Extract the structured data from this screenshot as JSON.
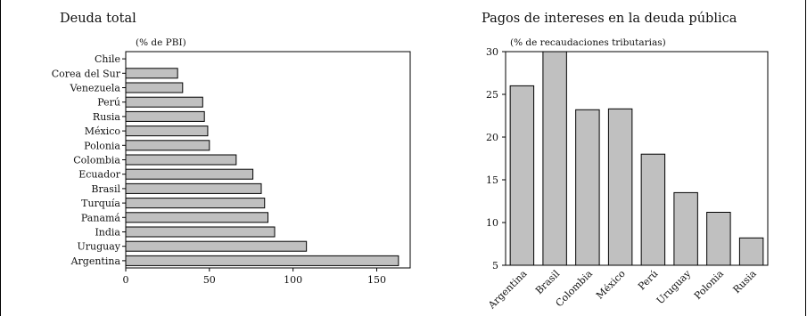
{
  "chart_data": [
    {
      "type": "bar",
      "orientation": "horizontal",
      "title": "Deuda total",
      "subtitle": "(% de PBI)",
      "categories": [
        "Chile",
        "Corea del Sur",
        "Venezuela",
        "Perú",
        "Rusia",
        "México",
        "Polonia",
        "Colombia",
        "Ecuador",
        "Brasil",
        "Turquía",
        "Panamá",
        "India",
        "Uruguay",
        "Argentina"
      ],
      "values": [
        0,
        31,
        34,
        46,
        47,
        49,
        50,
        66,
        76,
        81,
        83,
        85,
        89,
        108,
        163
      ],
      "xlim": [
        0,
        170
      ],
      "xticks": [
        0,
        50,
        100,
        150
      ],
      "bar_color": "#c0c0c0"
    },
    {
      "type": "bar",
      "orientation": "vertical",
      "title": "Pagos de intereses en la deuda pública",
      "subtitle": "(% de recaudaciones tributarias)",
      "categories": [
        "Argentina",
        "Brasil",
        "Colombia",
        "México",
        "Perú",
        "Uruguay",
        "Polonia",
        "Rusia"
      ],
      "values": [
        26,
        30,
        23.2,
        23.3,
        18,
        13.5,
        11.2,
        8.2
      ],
      "ylim": [
        5,
        30
      ],
      "yticks": [
        5,
        10,
        15,
        20,
        25,
        30
      ],
      "bar_color": "#c0c0c0"
    }
  ]
}
